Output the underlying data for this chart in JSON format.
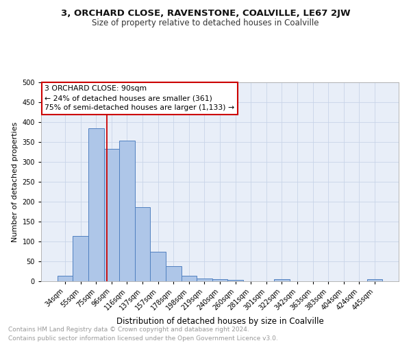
{
  "title": "3, ORCHARD CLOSE, RAVENSTONE, COALVILLE, LE67 2JW",
  "subtitle": "Size of property relative to detached houses in Coalville",
  "xlabel": "Distribution of detached houses by size in Coalville",
  "ylabel": "Number of detached properties",
  "categories": [
    "34sqm",
    "55sqm",
    "75sqm",
    "96sqm",
    "116sqm",
    "137sqm",
    "157sqm",
    "178sqm",
    "198sqm",
    "219sqm",
    "240sqm",
    "260sqm",
    "281sqm",
    "301sqm",
    "322sqm",
    "342sqm",
    "363sqm",
    "383sqm",
    "404sqm",
    "424sqm",
    "445sqm"
  ],
  "values": [
    13,
    113,
    385,
    333,
    354,
    186,
    75,
    38,
    13,
    7,
    5,
    4,
    0,
    0,
    5,
    0,
    0,
    0,
    0,
    0,
    5
  ],
  "bar_color": "#aec6e8",
  "bar_edge_color": "#5080c0",
  "vline_color": "#cc0000",
  "vline_x": 2.72,
  "annotation_text": "3 ORCHARD CLOSE: 90sqm\n← 24% of detached houses are smaller (361)\n75% of semi-detached houses are larger (1,133) →",
  "annotation_box_color": "#ffffff",
  "annotation_box_edge_color": "#cc0000",
  "ylim": [
    0,
    500
  ],
  "yticks": [
    0,
    50,
    100,
    150,
    200,
    250,
    300,
    350,
    400,
    450,
    500
  ],
  "grid_color": "#c8d4e8",
  "background_color": "#e8eef8",
  "footer_text": "Contains HM Land Registry data © Crown copyright and database right 2024.\nContains public sector information licensed under the Open Government Licence v3.0.",
  "title_fontsize": 9.5,
  "subtitle_fontsize": 8.5,
  "ylabel_fontsize": 8,
  "xlabel_fontsize": 8.5,
  "annotation_fontsize": 7.8,
  "footer_fontsize": 6.5,
  "tick_fontsize": 7
}
